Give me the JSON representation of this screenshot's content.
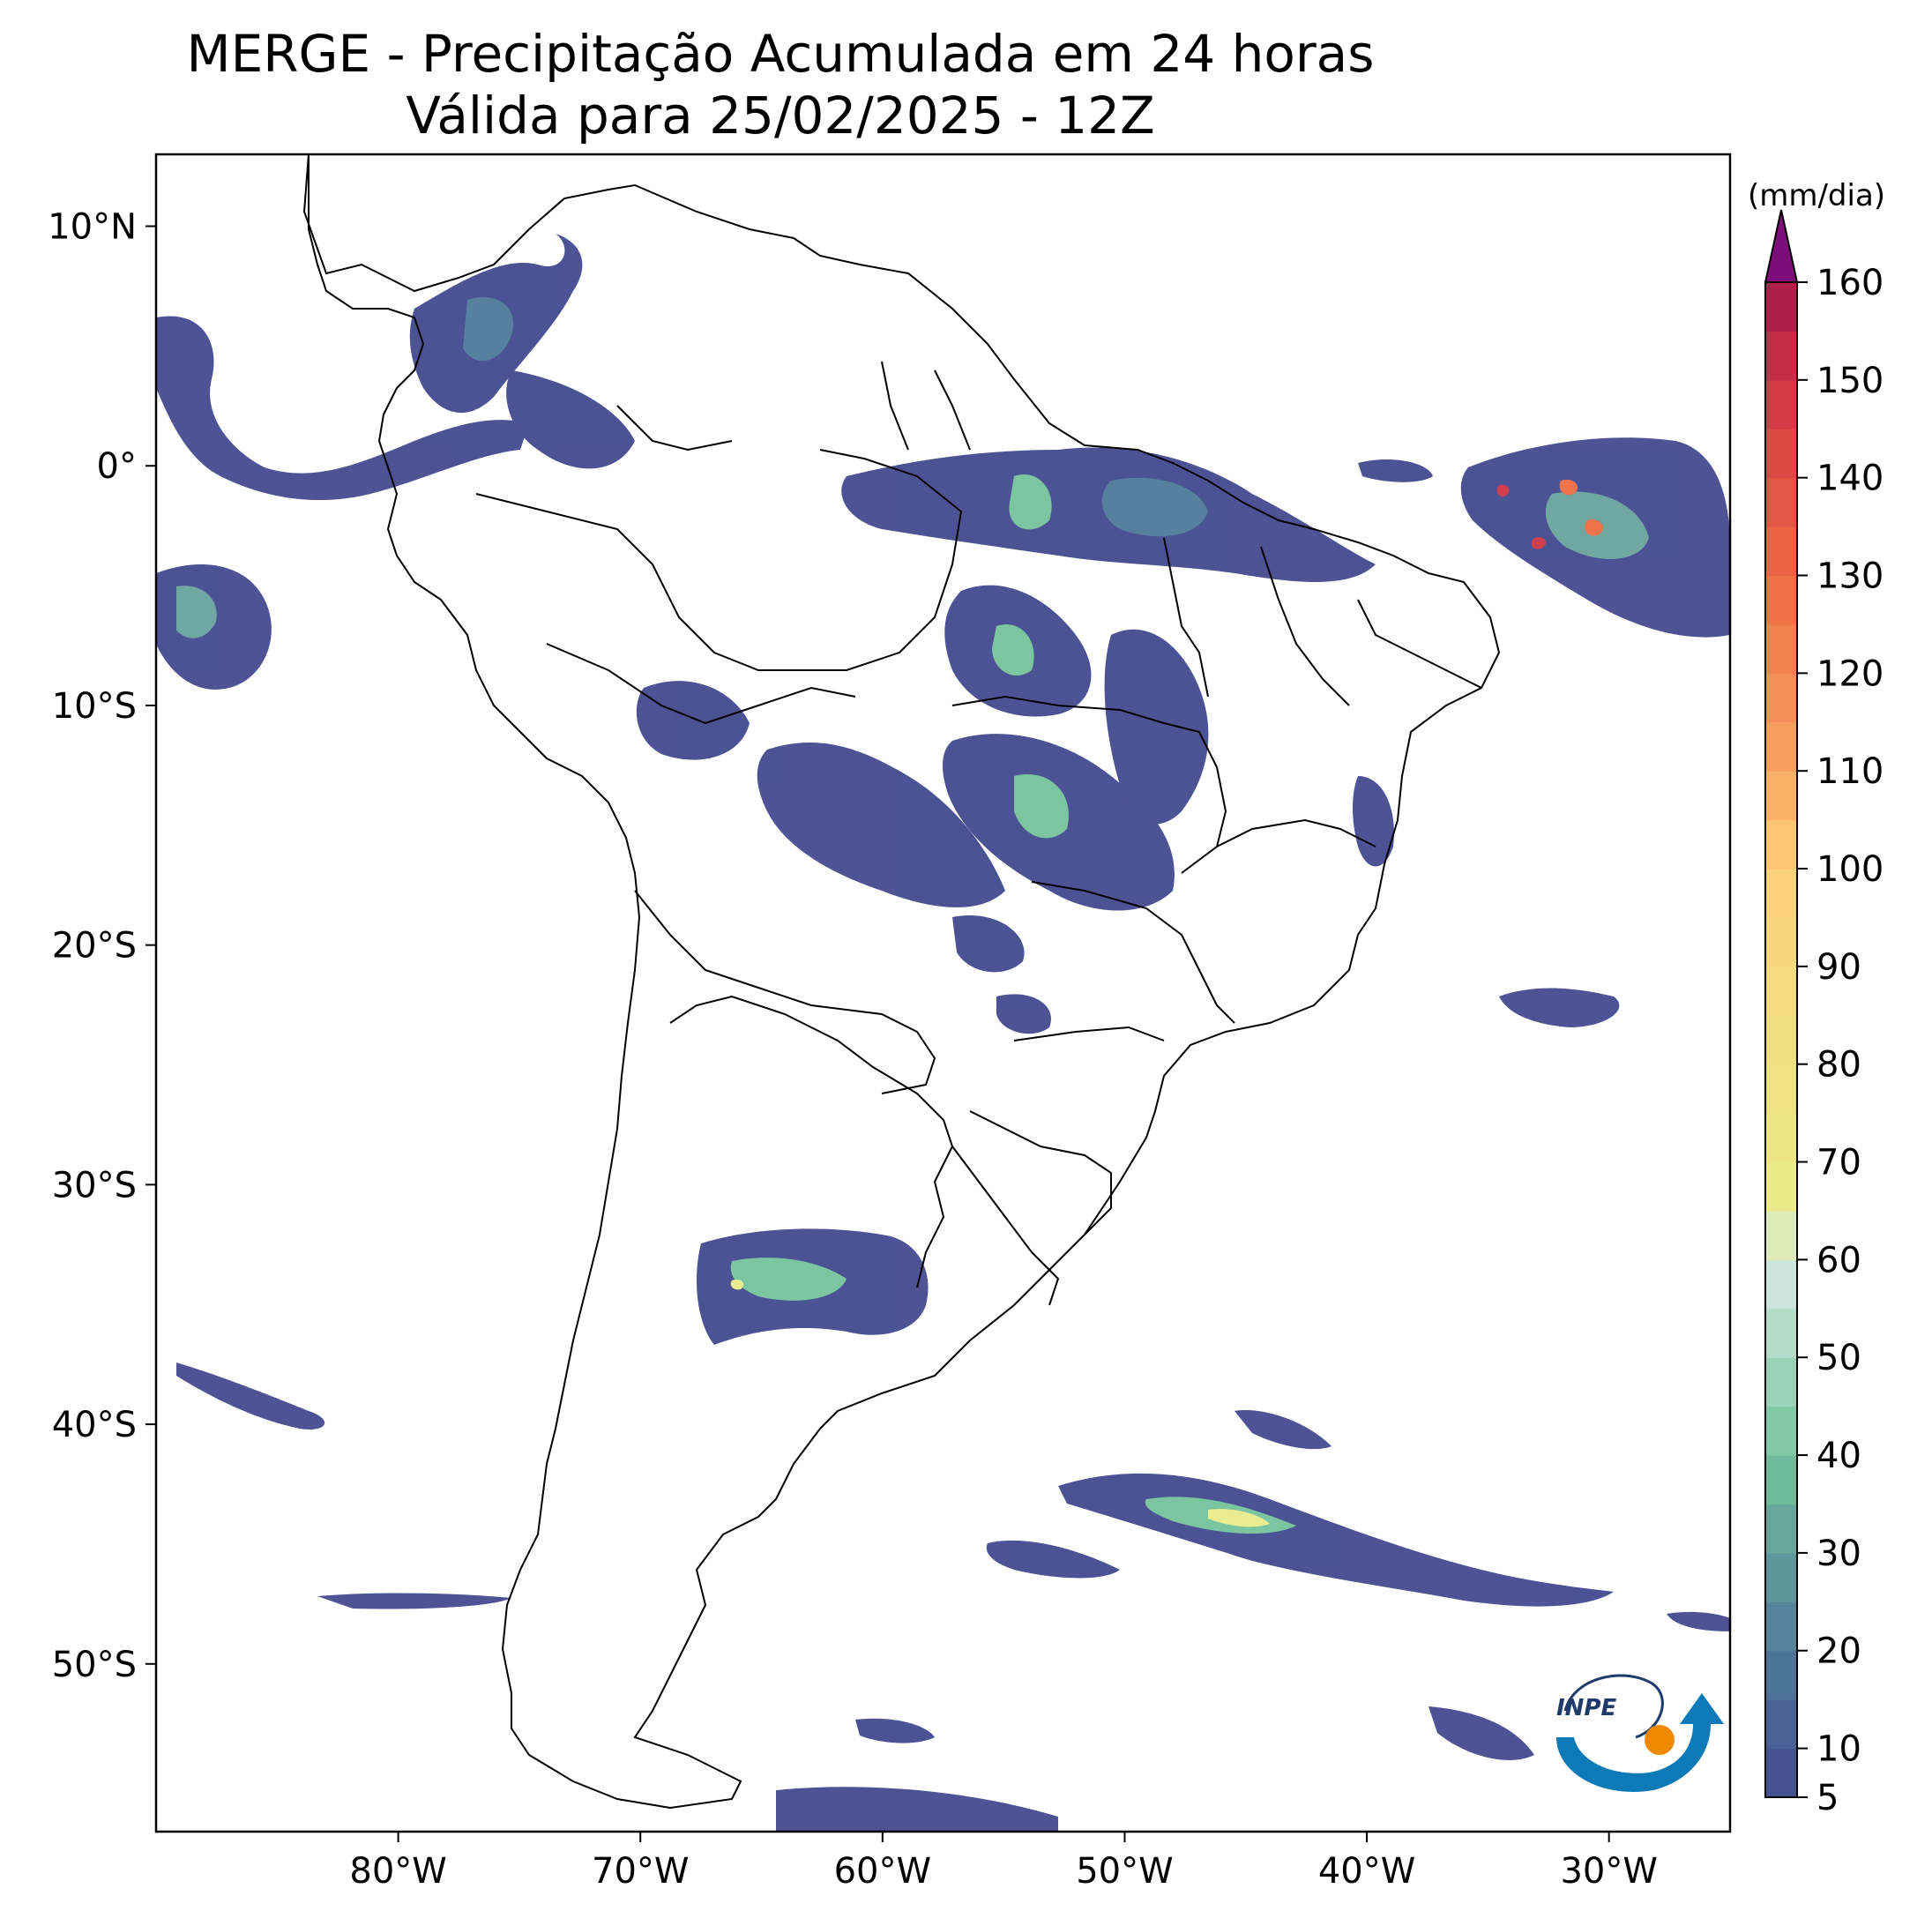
{
  "title": {
    "line1": "MERGE - Precipitação Acumulada em 24 horas",
    "line2": "Válida para 25/02/2025 - 12Z"
  },
  "map": {
    "extent_lon": [
      -90,
      -25
    ],
    "extent_lat": [
      -57,
      13
    ],
    "lon_ticks": [
      {
        "value": -80,
        "label": "80°W"
      },
      {
        "value": -70,
        "label": "70°W"
      },
      {
        "value": -60,
        "label": "60°W"
      },
      {
        "value": -50,
        "label": "50°W"
      },
      {
        "value": -40,
        "label": "40°W"
      },
      {
        "value": -30,
        "label": "30°W"
      }
    ],
    "lat_ticks": [
      {
        "value": 10,
        "label": "10°N"
      },
      {
        "value": 0,
        "label": "0°"
      },
      {
        "value": -10,
        "label": "10°S"
      },
      {
        "value": -20,
        "label": "20°S"
      },
      {
        "value": -30,
        "label": "30°S"
      },
      {
        "value": -40,
        "label": "40°S"
      },
      {
        "value": -50,
        "label": "50°S"
      }
    ],
    "logo_text": "INPE"
  },
  "colorbar": {
    "unit": "(mm/dia)",
    "min": 5,
    "max": 160,
    "ticks": [
      5,
      10,
      20,
      30,
      40,
      50,
      60,
      70,
      80,
      90,
      100,
      110,
      120,
      130,
      140,
      150,
      160
    ],
    "colors": {
      "5": "#434a8f",
      "20": "#4f7a9a",
      "40": "#74c49c",
      "60": "#d8ebe6",
      "65": "#e8ec8a",
      "100": "#fbd07a",
      "110": "#f7a663",
      "130": "#ee6b43",
      "150": "#cf3445",
      "160": "#a3184a",
      "extend": "#7d0e79"
    }
  }
}
